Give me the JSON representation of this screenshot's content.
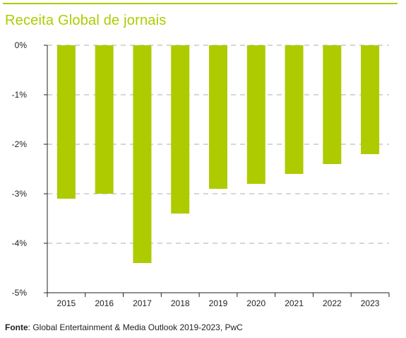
{
  "page": {
    "title": "Receita Global de jornais",
    "source_label": "Fonte",
    "source_text": ": Global Entertainment & Media Outlook 2019-2023, PwC"
  },
  "colors": {
    "accent": "#aecb00",
    "bar": "#aecb00",
    "grid": "#bdbdbd",
    "axis": "#222222",
    "text": "#222222"
  },
  "chart_data": {
    "type": "bar",
    "categories": [
      "2015",
      "2016",
      "2017",
      "2018",
      "2019",
      "2020",
      "2021",
      "2022",
      "2023"
    ],
    "values": [
      -3.1,
      -3.0,
      -4.4,
      -3.4,
      -2.9,
      -2.8,
      -2.6,
      -2.4,
      -2.2
    ],
    "yticks": [
      "0%",
      "-1%",
      "-2%",
      "-3%",
      "-4%",
      "-5%"
    ],
    "ylim": [
      -5,
      0
    ],
    "grid": true,
    "legend": "none"
  }
}
